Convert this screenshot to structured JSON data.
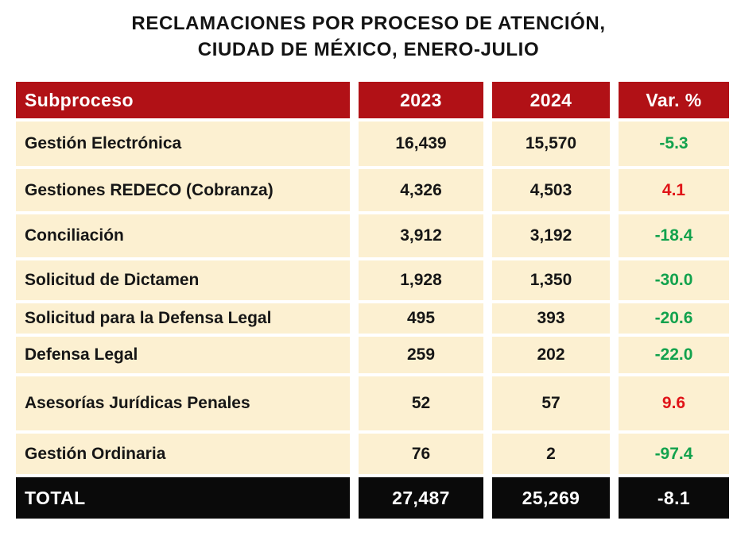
{
  "title": {
    "line1": "RECLAMACIONES POR PROCESO DE ATENCIÓN,",
    "line2": "CIUDAD DE MÉXICO, ENERO-JULIO"
  },
  "colors": {
    "header_bg": "#B11116",
    "header_text": "#FFFFFF",
    "row_bg": "#FCF0D1",
    "total_bg": "#0A0A0A",
    "decrease_green": "#12A24D",
    "increase_red": "#E01418"
  },
  "table": {
    "headers": [
      "Subproceso",
      "2023",
      "2024",
      "Var. %"
    ],
    "rows": [
      {
        "label": "Gestión Electrónica",
        "v2023": "16,439",
        "v2024": "15,570",
        "var": "-5.3"
      },
      {
        "label": "Gestiones REDECO (Cobranza)",
        "v2023": "4,326",
        "v2024": "4,503",
        "var": "4.1"
      },
      {
        "label": "Conciliación",
        "v2023": "3,912",
        "v2024": "3,192",
        "var": "-18.4"
      },
      {
        "label": "Solicitud de Dictamen",
        "v2023": "1,928",
        "v2024": "1,350",
        "var": "-30.0"
      },
      {
        "label": "Solicitud para la Defensa Legal",
        "v2023": "495",
        "v2024": "393",
        "var": "-20.6"
      },
      {
        "label": "Defensa Legal",
        "v2023": "259",
        "v2024": "202",
        "var": "-22.0"
      },
      {
        "label": "Asesorías Jurídicas Penales",
        "v2023": "52",
        "v2024": "57",
        "var": "9.6"
      },
      {
        "label": "Gestión Ordinaria",
        "v2023": "76",
        "v2024": "2",
        "var": "-97.4"
      }
    ],
    "total": {
      "label": "TOTAL",
      "v2023": "27,487",
      "v2024": "25,269",
      "var": "-8.1"
    }
  },
  "chart_data": {
    "type": "table",
    "title": "RECLAMACIONES POR PROCESO DE ATENCIÓN, CIUDAD DE MÉXICO, ENERO-JULIO",
    "columns": [
      "Subproceso",
      "2023",
      "2024",
      "Var. %"
    ],
    "rows": [
      [
        "Gestión Electrónica",
        16439,
        15570,
        -5.3
      ],
      [
        "Gestiones REDECO (Cobranza)",
        4326,
        4503,
        4.1
      ],
      [
        "Conciliación",
        3912,
        3192,
        -18.4
      ],
      [
        "Solicitud de Dictamen",
        1928,
        1350,
        -30.0
      ],
      [
        "Solicitud para la Defensa Legal",
        495,
        393,
        -20.6
      ],
      [
        "Defensa Legal",
        259,
        202,
        -22.0
      ],
      [
        "Asesorías Jurídicas Penales",
        52,
        57,
        9.6
      ],
      [
        "Gestión Ordinaria",
        76,
        2,
        -97.4
      ],
      [
        "TOTAL",
        27487,
        25269,
        -8.1
      ]
    ]
  }
}
